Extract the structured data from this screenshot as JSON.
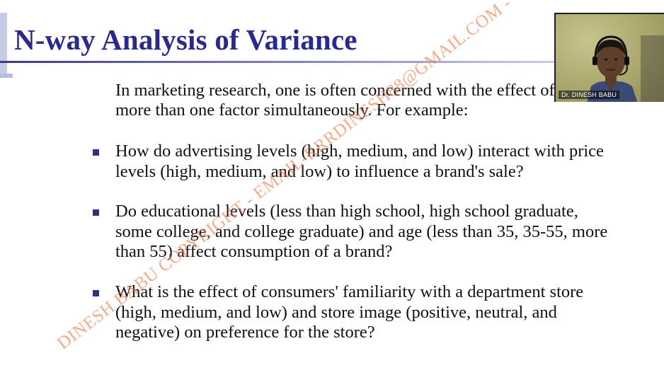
{
  "slide": {
    "title": "N-way Analysis of Variance",
    "intro": "In marketing research, one is often concerned with the effect of more than one factor simultaneously. For example:",
    "bullets": [
      "How do advertising levels (high, medium, and low) interact with price levels (high, medium, and low) to influence a brand's sale?",
      "Do educational levels (less than high school, high school graduate, some college, and college graduate) and age (less than 35, 35-55, more than 55) affect consumption of a brand?",
      "What is the effect of consumers' familiarity with a department store (high, medium, and low) and store image (positive, neutral, and negative) on preference for the store?"
    ],
    "watermark": "DINESH BABU COPYRIGHT - EMAIL-RRRDINESH88@GMAIL.COM -"
  },
  "webcam": {
    "presenter_name": "Dr. DINESH BABU"
  },
  "colors": {
    "title": "#2a2a8a",
    "bullet_marker": "#2e2e8c",
    "watermark": "#ec7846"
  }
}
